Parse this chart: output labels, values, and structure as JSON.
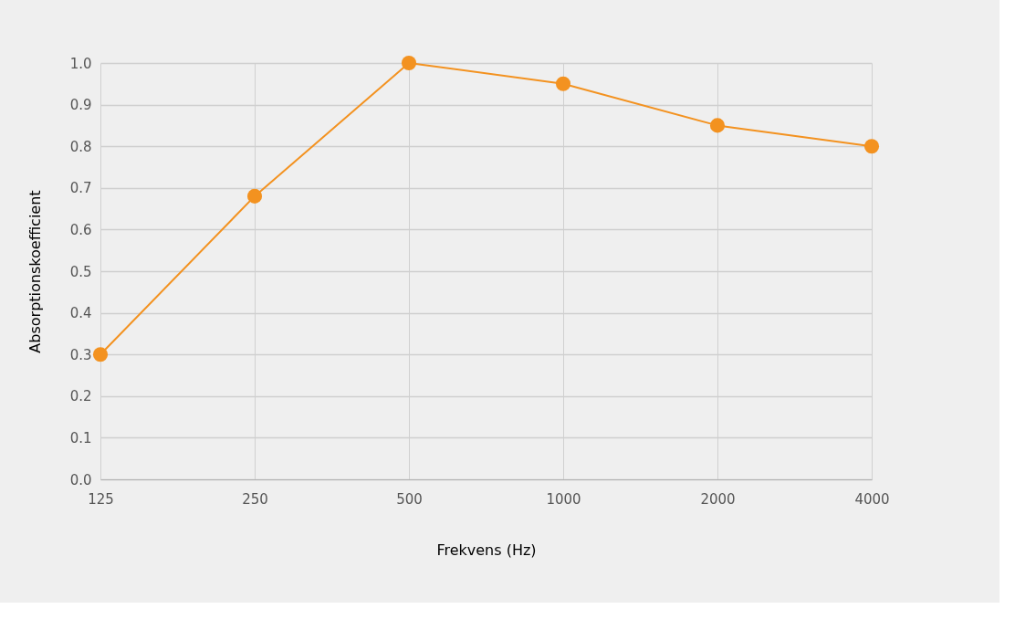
{
  "chart_data": {
    "type": "line",
    "xlabel": "Frekvens (Hz)",
    "ylabel": "Absorptionskoefficient",
    "categories": [
      "125",
      "250",
      "500",
      "1000",
      "2000",
      "4000"
    ],
    "series": [
      {
        "color": "#f39220",
        "values": [
          0.3,
          0.68,
          1.0,
          0.95,
          0.85,
          0.8
        ]
      }
    ],
    "ylim": [
      0,
      1
    ],
    "yticks": [
      {
        "value": 0,
        "label": "0.0"
      },
      {
        "value": 0.1,
        "label": "0.1"
      },
      {
        "value": 0.2,
        "label": "0.2"
      },
      {
        "value": 0.3,
        "label": "0.3"
      },
      {
        "value": 0.4,
        "label": "0.4"
      },
      {
        "value": 0.5,
        "label": "0.5"
      },
      {
        "value": 0.6,
        "label": "0.6"
      },
      {
        "value": 0.7,
        "label": "0.7"
      },
      {
        "value": 0.8,
        "label": "0.8"
      },
      {
        "value": 0.9,
        "label": "0.9"
      },
      {
        "value": 1.0,
        "label": "1.0"
      }
    ],
    "grid": true,
    "marker": "circle",
    "line_style": "solid"
  }
}
